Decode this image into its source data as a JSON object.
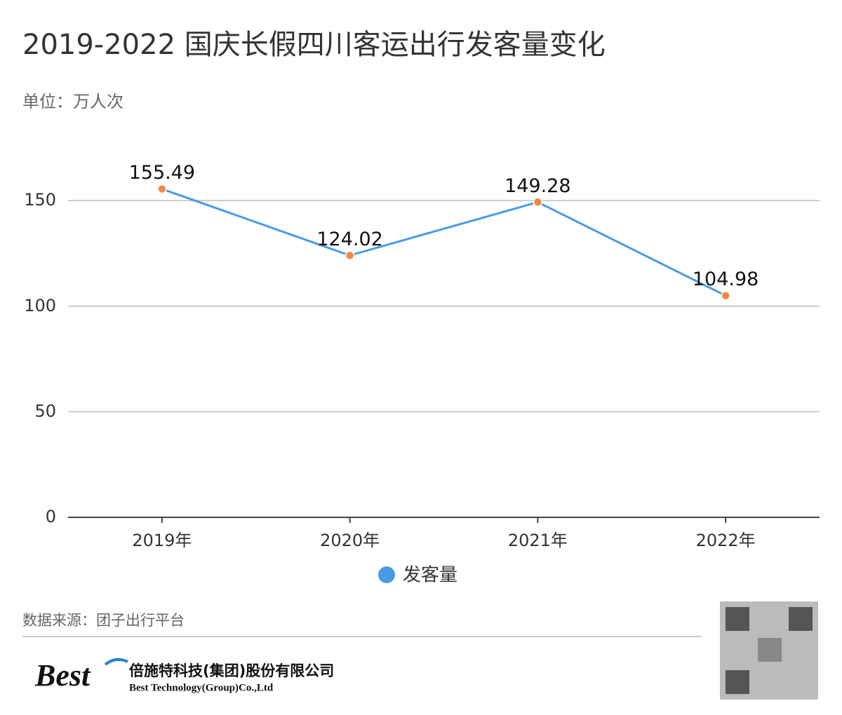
{
  "chart_data": {
    "type": "line",
    "title": "2019-2022 国庆长假四川客运出行发客量变化",
    "subtitle": "单位：万人次",
    "categories": [
      "2019年",
      "2020年",
      "2021年",
      "2022年"
    ],
    "series": [
      {
        "name": "发客量",
        "color": "#4a9be6",
        "marker_color": "#ee8a42",
        "values": [
          155.49,
          124.02,
          149.28,
          104.98
        ]
      }
    ],
    "ylim": [
      0,
      160
    ],
    "yticks": [
      0,
      50,
      100,
      150
    ],
    "grid": true
  },
  "footer": {
    "source": "数据来源：团子出行平台",
    "logo": "Best",
    "company_cn": "倍施特科技(集团)股份有限公司",
    "company_en": "Best Technology(Group)Co.,Ltd"
  }
}
